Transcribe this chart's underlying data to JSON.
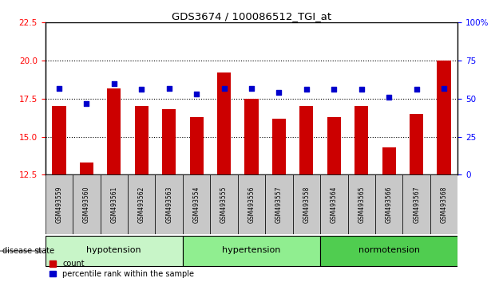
{
  "title": "GDS3674 / 100086512_TGI_at",
  "samples": [
    "GSM493559",
    "GSM493560",
    "GSM493561",
    "GSM493562",
    "GSM493563",
    "GSM493554",
    "GSM493555",
    "GSM493556",
    "GSM493557",
    "GSM493558",
    "GSM493564",
    "GSM493565",
    "GSM493566",
    "GSM493567",
    "GSM493568"
  ],
  "count_values": [
    17.0,
    13.3,
    18.2,
    17.0,
    16.8,
    16.3,
    19.2,
    17.5,
    16.2,
    17.0,
    16.3,
    17.0,
    14.3,
    16.5,
    20.0
  ],
  "percentile_values": [
    57,
    47,
    60,
    56,
    57,
    53,
    57,
    57,
    54,
    56,
    56,
    56,
    51,
    56,
    57
  ],
  "groups": [
    {
      "label": "hypotension",
      "start": 0,
      "end": 5
    },
    {
      "label": "hypertension",
      "start": 5,
      "end": 10
    },
    {
      "label": "normotension",
      "start": 10,
      "end": 15
    }
  ],
  "group_colors": [
    "#c8f5c8",
    "#90ee90",
    "#50cd50"
  ],
  "ylim_left": [
    12.5,
    22.5
  ],
  "ylim_right": [
    0,
    100
  ],
  "yticks_left": [
    12.5,
    15.0,
    17.5,
    20.0,
    22.5
  ],
  "yticks_right": [
    0,
    25,
    50,
    75,
    100
  ],
  "bar_color": "#CC0000",
  "dot_color": "#0000CC",
  "bar_width": 0.5
}
